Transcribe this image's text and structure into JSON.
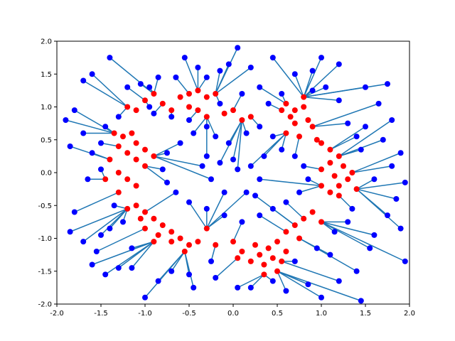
{
  "chart_data": {
    "type": "scatter",
    "title": "",
    "xlabel": "",
    "ylabel": "",
    "xlim": [
      -2.0,
      2.0
    ],
    "ylim": [
      -2.0,
      2.0
    ],
    "xticks": [
      -2.0,
      -1.5,
      -1.0,
      -0.5,
      0.0,
      0.5,
      1.0,
      1.5,
      2.0
    ],
    "yticks": [
      -2.0,
      -1.5,
      -1.0,
      -0.5,
      0.0,
      0.5,
      1.0,
      1.5,
      2.0
    ],
    "xtick_labels": [
      "-2.0",
      "-1.5",
      "-1.0",
      "-0.5",
      "0.0",
      "0.5",
      "1.0",
      "1.5",
      "2.0"
    ],
    "ytick_labels": [
      "-2.0",
      "-1.5",
      "-1.0",
      "-0.5",
      "0.0",
      "0.5",
      "1.0",
      "1.5",
      "2.0"
    ],
    "grid": false,
    "legend": "none",
    "colors": {
      "red_points": "#ff0000",
      "blue_points": "#0000ff",
      "lines": "#1f77b4"
    },
    "series": [
      {
        "color": "#ff0000",
        "marker": "circle",
        "points": [
          [
            -1.2,
            1.0
          ],
          [
            -1.1,
            0.95
          ],
          [
            -1.0,
            1.1
          ],
          [
            -0.9,
            1.2
          ],
          [
            -0.8,
            1.05
          ],
          [
            -0.6,
            1.15
          ],
          [
            -0.5,
            1.2
          ],
          [
            -0.4,
            1.25
          ],
          [
            -0.3,
            1.15
          ],
          [
            -0.2,
            1.2
          ],
          [
            -0.1,
            0.9
          ],
          [
            0.0,
            0.95
          ],
          [
            0.1,
            0.8
          ],
          [
            0.2,
            0.85
          ],
          [
            -0.4,
            0.95
          ],
          [
            -0.3,
            0.85
          ],
          [
            -0.5,
            1.0
          ],
          [
            -0.7,
            0.95
          ],
          [
            0.6,
            1.05
          ],
          [
            0.7,
            0.95
          ],
          [
            0.8,
            1.0
          ],
          [
            0.85,
            0.8
          ],
          [
            0.9,
            0.7
          ],
          [
            0.7,
            0.75
          ],
          [
            0.6,
            0.6
          ],
          [
            0.75,
            0.55
          ],
          [
            0.95,
            0.5
          ],
          [
            0.65,
            0.85
          ],
          [
            0.55,
            0.95
          ],
          [
            0.8,
            1.15
          ],
          [
            1.0,
            0.45
          ],
          [
            1.1,
            0.35
          ],
          [
            1.2,
            0.25
          ],
          [
            1.1,
            0.15
          ],
          [
            1.0,
            0.05
          ],
          [
            1.15,
            -0.05
          ],
          [
            1.3,
            -0.1
          ],
          [
            1.2,
            -0.2
          ],
          [
            1.1,
            -0.3
          ],
          [
            1.0,
            -0.2
          ],
          [
            1.25,
            0.1
          ],
          [
            1.35,
            0.0
          ],
          [
            1.2,
            -0.35
          ],
          [
            1.4,
            -0.25
          ],
          [
            0.9,
            -0.6
          ],
          [
            0.8,
            -0.7
          ],
          [
            1.0,
            -0.75
          ],
          [
            0.7,
            -0.8
          ],
          [
            0.6,
            -0.9
          ],
          [
            0.75,
            -1.0
          ],
          [
            0.5,
            -1.05
          ],
          [
            0.4,
            -1.15
          ],
          [
            0.3,
            -1.25
          ],
          [
            0.35,
            -1.4
          ],
          [
            0.45,
            -1.3
          ],
          [
            0.6,
            -1.2
          ],
          [
            0.2,
            -1.35
          ],
          [
            0.1,
            -1.2
          ],
          [
            0.0,
            -1.05
          ],
          [
            0.05,
            -1.3
          ],
          [
            0.25,
            -1.1
          ],
          [
            0.55,
            -1.35
          ],
          [
            0.5,
            -1.5
          ],
          [
            0.35,
            -1.55
          ],
          [
            -0.5,
            -1.1
          ],
          [
            -0.6,
            -1.0
          ],
          [
            -0.7,
            -0.9
          ],
          [
            -0.8,
            -0.8
          ],
          [
            -0.9,
            -0.7
          ],
          [
            -1.0,
            -0.6
          ],
          [
            -1.1,
            -0.5
          ],
          [
            -1.2,
            -0.55
          ],
          [
            -1.0,
            -0.85
          ],
          [
            -0.85,
            -0.95
          ],
          [
            -0.7,
            -1.05
          ],
          [
            -0.55,
            -1.2
          ],
          [
            -0.4,
            -1.05
          ],
          [
            -0.3,
            -0.85
          ],
          [
            -0.2,
            -1.1
          ],
          [
            -0.9,
            -1.05
          ],
          [
            -1.05,
            -0.7
          ],
          [
            -1.3,
            0.4
          ],
          [
            -1.2,
            0.3
          ],
          [
            -1.1,
            0.2
          ],
          [
            -1.0,
            0.1
          ],
          [
            -1.2,
            -0.1
          ],
          [
            -1.1,
            -0.2
          ],
          [
            -1.3,
            -0.3
          ],
          [
            -1.4,
            0.2
          ],
          [
            -1.25,
            0.55
          ],
          [
            -1.15,
            0.6
          ],
          [
            -1.35,
            0.6
          ],
          [
            -1.0,
            0.35
          ],
          [
            -0.9,
            0.25
          ],
          [
            -1.1,
            0.45
          ],
          [
            -1.45,
            -0.1
          ],
          [
            -1.3,
            0.0
          ]
        ]
      },
      {
        "color": "#0000ff",
        "marker": "circle",
        "points": [
          [
            -1.8,
            0.95
          ],
          [
            -1.6,
            1.5
          ],
          [
            -1.4,
            1.75
          ],
          [
            -1.7,
            1.4
          ],
          [
            -1.9,
            0.8
          ],
          [
            -1.85,
            0.4
          ],
          [
            -1.7,
            0.6
          ],
          [
            -1.6,
            0.3
          ],
          [
            -1.5,
            0.05
          ],
          [
            -1.65,
            -0.1
          ],
          [
            -1.8,
            -0.6
          ],
          [
            -1.85,
            -0.9
          ],
          [
            -1.7,
            -1.05
          ],
          [
            -1.55,
            -1.2
          ],
          [
            -1.45,
            -1.55
          ],
          [
            -1.3,
            -1.45
          ],
          [
            -1.6,
            -1.4
          ],
          [
            -1.5,
            -0.95
          ],
          [
            -1.2,
            1.3
          ],
          [
            -1.05,
            1.35
          ],
          [
            -0.95,
            1.3
          ],
          [
            -0.85,
            1.45
          ],
          [
            -0.65,
            1.45
          ],
          [
            -0.55,
            1.75
          ],
          [
            -0.4,
            1.6
          ],
          [
            -0.3,
            1.45
          ],
          [
            -0.15,
            1.55
          ],
          [
            -0.05,
            1.65
          ],
          [
            0.05,
            1.9
          ],
          [
            0.2,
            1.6
          ],
          [
            0.45,
            1.75
          ],
          [
            0.7,
            1.5
          ],
          [
            0.9,
            1.55
          ],
          [
            1.0,
            1.75
          ],
          [
            1.2,
            1.65
          ],
          [
            1.5,
            1.3
          ],
          [
            1.75,
            1.35
          ],
          [
            1.65,
            1.05
          ],
          [
            1.8,
            0.8
          ],
          [
            1.5,
            0.7
          ],
          [
            1.7,
            0.5
          ],
          [
            1.9,
            0.3
          ],
          [
            1.8,
            0.1
          ],
          [
            1.95,
            -0.15
          ],
          [
            1.6,
            -0.1
          ],
          [
            1.85,
            -0.4
          ],
          [
            1.75,
            -0.65
          ],
          [
            1.9,
            -0.85
          ],
          [
            1.6,
            -0.95
          ],
          [
            1.95,
            -1.35
          ],
          [
            1.55,
            -1.15
          ],
          [
            1.4,
            -1.5
          ],
          [
            1.45,
            -1.95
          ],
          [
            1.2,
            -1.65
          ],
          [
            1.0,
            -1.9
          ],
          [
            0.85,
            -1.7
          ],
          [
            0.6,
            -1.8
          ],
          [
            0.45,
            -1.65
          ],
          [
            0.2,
            -1.75
          ],
          [
            0.05,
            -1.75
          ],
          [
            -0.2,
            -1.6
          ],
          [
            -0.45,
            -1.75
          ],
          [
            -0.5,
            -1.55
          ],
          [
            -0.7,
            -1.5
          ],
          [
            -0.85,
            -1.65
          ],
          [
            -1.0,
            -1.9
          ],
          [
            -1.15,
            -1.45
          ],
          [
            -0.9,
            0.9
          ],
          [
            -0.7,
            0.85
          ],
          [
            -0.5,
            0.8
          ],
          [
            -0.3,
            0.7
          ],
          [
            -0.2,
            0.55
          ],
          [
            -0.05,
            0.45
          ],
          [
            0.15,
            0.6
          ],
          [
            0.3,
            0.7
          ],
          [
            0.45,
            0.55
          ],
          [
            0.55,
            0.35
          ],
          [
            0.7,
            0.25
          ],
          [
            0.8,
            0.1
          ],
          [
            0.85,
            -0.1
          ],
          [
            0.75,
            -0.3
          ],
          [
            0.6,
            -0.45
          ],
          [
            0.45,
            -0.55
          ],
          [
            0.3,
            -0.65
          ],
          [
            0.1,
            -0.75
          ],
          [
            -0.1,
            -0.65
          ],
          [
            -0.3,
            -0.55
          ],
          [
            -0.5,
            -0.45
          ],
          [
            -0.65,
            -0.3
          ],
          [
            -0.75,
            -0.15
          ],
          [
            -0.8,
            0.05
          ],
          [
            -0.75,
            0.3
          ],
          [
            -0.6,
            0.45
          ],
          [
            -0.45,
            0.6
          ],
          [
            -0.3,
            0.25
          ],
          [
            -0.15,
            0.15
          ],
          [
            0.0,
            0.2
          ],
          [
            0.2,
            0.1
          ],
          [
            0.3,
            -0.1
          ],
          [
            0.15,
            -0.3
          ],
          [
            -0.1,
            -0.3
          ],
          [
            -0.25,
            -0.1
          ],
          [
            0.05,
            0.05
          ],
          [
            -0.35,
            0.1
          ],
          [
            0.35,
            0.25
          ],
          [
            0.25,
            -0.35
          ],
          [
            -1.3,
            0.85
          ],
          [
            -1.45,
            0.7
          ],
          [
            -1.5,
            0.45
          ],
          [
            -1.35,
            -0.5
          ],
          [
            -1.25,
            -0.75
          ],
          [
            -1.4,
            -0.85
          ],
          [
            1.3,
            0.75
          ],
          [
            1.4,
            0.55
          ],
          [
            1.45,
            0.35
          ],
          [
            1.35,
            -0.55
          ],
          [
            1.3,
            -0.75
          ],
          [
            1.15,
            -0.9
          ],
          [
            0.95,
            -1.15
          ],
          [
            -0.95,
            1.0
          ],
          [
            1.2,
            1.1
          ],
          [
            1.05,
            1.3
          ],
          [
            0.3,
            1.3
          ],
          [
            0.1,
            1.2
          ],
          [
            -0.15,
            1.05
          ],
          [
            0.4,
            1.05
          ],
          [
            0.55,
            1.2
          ],
          [
            0.9,
            1.25
          ],
          [
            -1.15,
            -1.15
          ],
          [
            -0.25,
            -1.35
          ],
          [
            0.7,
            -1.35
          ],
          [
            1.1,
            -1.25
          ]
        ]
      }
    ]
  }
}
